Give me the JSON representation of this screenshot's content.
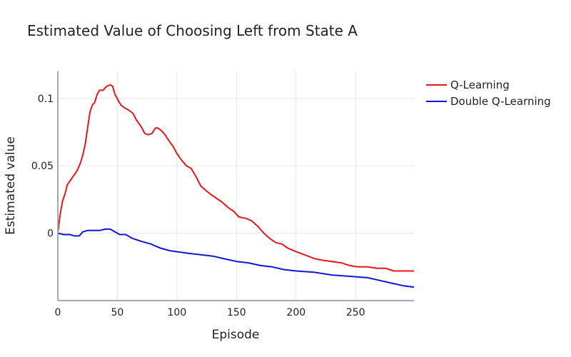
{
  "chart_data": {
    "type": "line",
    "title": "Estimated Value of Choosing Left from State A",
    "xlabel": "Episode",
    "ylabel": "Estimated value",
    "xlim": [
      0,
      299
    ],
    "ylim": [
      -0.05,
      0.12
    ],
    "xticks": [
      0,
      50,
      100,
      150,
      200,
      250
    ],
    "yticks": [
      {
        "value": 0,
        "label": "0"
      },
      {
        "value": 0.05,
        "label": "0.05"
      },
      {
        "value": 0.1,
        "label": "0.1"
      }
    ],
    "grid": true,
    "legend_position": "top-right",
    "series": [
      {
        "name": "Q-Learning",
        "color": "#e8151b",
        "points": [
          [
            0,
            0.0
          ],
          [
            2,
            0.014
          ],
          [
            4,
            0.024
          ],
          [
            6,
            0.029
          ],
          [
            8,
            0.036
          ],
          [
            12,
            0.041
          ],
          [
            16,
            0.046
          ],
          [
            19,
            0.052
          ],
          [
            21,
            0.058
          ],
          [
            23,
            0.066
          ],
          [
            25,
            0.078
          ],
          [
            27,
            0.09
          ],
          [
            29,
            0.095
          ],
          [
            31,
            0.097
          ],
          [
            33,
            0.103
          ],
          [
            35,
            0.106
          ],
          [
            38,
            0.106
          ],
          [
            41,
            0.109
          ],
          [
            44,
            0.11
          ],
          [
            46,
            0.109
          ],
          [
            48,
            0.103
          ],
          [
            51,
            0.098
          ],
          [
            53,
            0.095
          ],
          [
            56,
            0.093
          ],
          [
            60,
            0.091
          ],
          [
            63,
            0.089
          ],
          [
            66,
            0.084
          ],
          [
            70,
            0.079
          ],
          [
            73,
            0.074
          ],
          [
            76,
            0.073
          ],
          [
            79,
            0.074
          ],
          [
            82,
            0.078
          ],
          [
            84,
            0.078
          ],
          [
            87,
            0.076
          ],
          [
            90,
            0.073
          ],
          [
            93,
            0.069
          ],
          [
            97,
            0.064
          ],
          [
            100,
            0.059
          ],
          [
            104,
            0.054
          ],
          [
            108,
            0.05
          ],
          [
            112,
            0.048
          ],
          [
            116,
            0.042
          ],
          [
            120,
            0.035
          ],
          [
            124,
            0.032
          ],
          [
            128,
            0.029
          ],
          [
            133,
            0.026
          ],
          [
            138,
            0.023
          ],
          [
            143,
            0.019
          ],
          [
            148,
            0.016
          ],
          [
            152,
            0.012
          ],
          [
            158,
            0.011
          ],
          [
            163,
            0.009
          ],
          [
            168,
            0.005
          ],
          [
            173,
            0.0
          ],
          [
            178,
            -0.004
          ],
          [
            183,
            -0.007
          ],
          [
            188,
            -0.008
          ],
          [
            193,
            -0.011
          ],
          [
            198,
            -0.013
          ],
          [
            204,
            -0.015
          ],
          [
            210,
            -0.017
          ],
          [
            216,
            -0.019
          ],
          [
            222,
            -0.02
          ],
          [
            230,
            -0.021
          ],
          [
            238,
            -0.022
          ],
          [
            245,
            -0.024
          ],
          [
            252,
            -0.025
          ],
          [
            260,
            -0.025
          ],
          [
            268,
            -0.026
          ],
          [
            275,
            -0.026
          ],
          [
            282,
            -0.028
          ],
          [
            290,
            -0.028
          ],
          [
            299,
            -0.028
          ]
        ]
      },
      {
        "name": "Double Q-Learning",
        "color": "#1216d6",
        "points": [
          [
            0,
            0.0
          ],
          [
            5,
            -0.001
          ],
          [
            10,
            -0.001
          ],
          [
            14,
            -0.002
          ],
          [
            18,
            -0.002
          ],
          [
            21,
            0.001
          ],
          [
            25,
            0.002
          ],
          [
            30,
            0.002
          ],
          [
            35,
            0.002
          ],
          [
            40,
            0.003
          ],
          [
            44,
            0.003
          ],
          [
            48,
            0.001
          ],
          [
            52,
            -0.001
          ],
          [
            57,
            -0.001
          ],
          [
            63,
            -0.004
          ],
          [
            70,
            -0.006
          ],
          [
            78,
            -0.008
          ],
          [
            86,
            -0.011
          ],
          [
            94,
            -0.013
          ],
          [
            102,
            -0.014
          ],
          [
            110,
            -0.015
          ],
          [
            120,
            -0.016
          ],
          [
            130,
            -0.017
          ],
          [
            140,
            -0.019
          ],
          [
            150,
            -0.021
          ],
          [
            160,
            -0.022
          ],
          [
            170,
            -0.024
          ],
          [
            180,
            -0.025
          ],
          [
            190,
            -0.027
          ],
          [
            200,
            -0.028
          ],
          [
            215,
            -0.029
          ],
          [
            230,
            -0.031
          ],
          [
            245,
            -0.032
          ],
          [
            260,
            -0.033
          ],
          [
            270,
            -0.035
          ],
          [
            280,
            -0.037
          ],
          [
            290,
            -0.039
          ],
          [
            299,
            -0.04
          ]
        ]
      }
    ]
  }
}
